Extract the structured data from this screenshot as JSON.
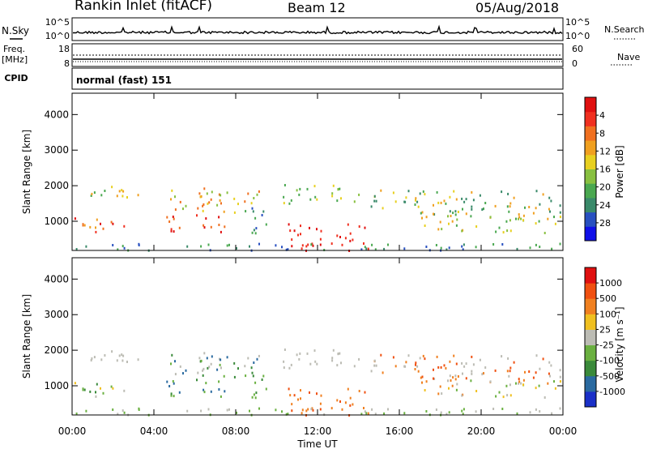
{
  "header": {
    "station": "Rankin Inlet (fitACF)",
    "beam": "Beam 12",
    "date": "05/Aug/2018"
  },
  "strip": {
    "nsky_label": "N.Sky",
    "nsky_ticks": [
      "10^5",
      "10^0"
    ],
    "nsearch_label": "N.Search",
    "nsearch_ticks": [
      "10^5",
      "10^0"
    ],
    "freq_label": "Freq.",
    "freq_unit": "[MHz]",
    "freq_ticks": [
      "18",
      "8"
    ],
    "nave_label": "Nave",
    "nave_ticks": [
      "60",
      "0"
    ],
    "cpid_label": "CPID",
    "cpid_value": "normal (fast) 151"
  },
  "chart_data": [
    {
      "type": "heatmap",
      "name": "power-panel",
      "ylabel": "Slant Range [km]",
      "xlabel": "Time UT",
      "x_ticks": [
        "00:00",
        "04:00",
        "08:00",
        "12:00",
        "16:00",
        "20:00",
        "00:00"
      ],
      "xlim_hours": [
        0,
        24
      ],
      "ylim": [
        180,
        4600
      ],
      "y_ticks": [
        1000,
        2000,
        3000,
        4000
      ],
      "colorbar": {
        "label": "Power [dB]",
        "ticks": [
          "4",
          "8",
          "12",
          "16",
          "20",
          "24",
          "28"
        ],
        "colors": [
          "#1010e8",
          "#2850c0",
          "#3a8a6a",
          "#4aa850",
          "#88c040",
          "#e8d020",
          "#f0a020",
          "#f07020",
          "#f03020",
          "#e01010"
        ]
      }
    },
    {
      "type": "heatmap",
      "name": "velocity-panel",
      "ylabel": "Slant Range [km]",
      "xlabel": "Time UT",
      "x_ticks": [
        "00:00",
        "04:00",
        "08:00",
        "12:00",
        "16:00",
        "20:00",
        "00:00"
      ],
      "xlim_hours": [
        0,
        24
      ],
      "ylim": [
        180,
        4600
      ],
      "y_ticks": [
        1000,
        2000,
        3000,
        4000
      ],
      "colorbar": {
        "label": "Velocity [m s⁻¹]",
        "ticks": [
          "1000",
          "500",
          "100",
          "25",
          "-25",
          "-100",
          "-500",
          "-1000"
        ],
        "colors": [
          "#1a30c8",
          "#2a6aa0",
          "#3a8a3a",
          "#6ab040",
          "#bcbcb4",
          "#f0c020",
          "#f08020",
          "#f05010",
          "#e01010"
        ]
      }
    }
  ]
}
